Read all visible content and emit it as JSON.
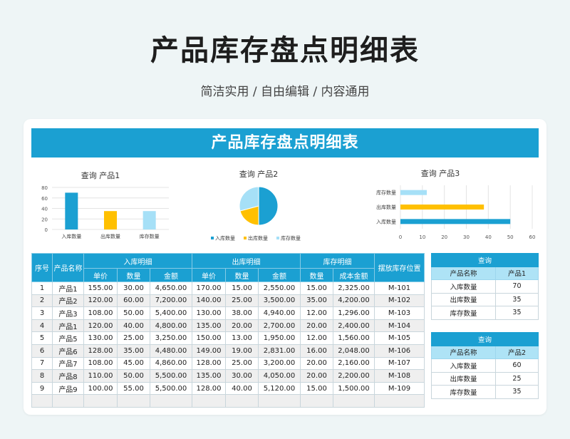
{
  "header": {
    "title": "产品库存盘点明细表",
    "subtitle": "简洁实用 / 自由编辑 / 内容通用"
  },
  "banner": {
    "title": "产品库存盘点明细表"
  },
  "colors": {
    "primary": "#1ba0d2",
    "yellow": "#ffc000",
    "light": "#a6e0f7"
  },
  "chart_data": [
    {
      "type": "bar",
      "title": "查询 产品1",
      "categories": [
        "入库数量",
        "出库数量",
        "库存数量"
      ],
      "values": [
        70,
        35,
        35
      ],
      "ylim": [
        0,
        80
      ],
      "yticks": [
        0,
        20,
        40,
        60,
        80
      ]
    },
    {
      "type": "pie",
      "title": "查询 产品2",
      "categories": [
        "入库数量",
        "出库数量",
        "库存数量"
      ],
      "values": [
        60,
        25,
        35
      ],
      "legend": "bottom"
    },
    {
      "type": "bar",
      "orientation": "horizontal",
      "title": "查询 产品3",
      "categories": [
        "入库数量",
        "出库数量",
        "库存数量"
      ],
      "values": [
        50,
        38,
        12
      ],
      "xlim": [
        0,
        60
      ],
      "xticks": [
        0,
        10,
        20,
        30,
        40,
        50,
        60
      ]
    }
  ],
  "inventory": {
    "headers": {
      "seq": "序号",
      "name": "产品名称",
      "in_group": "入库明细",
      "out_group": "出库明细",
      "stock_group": "库存明细",
      "location": "摆放库存位置",
      "price": "单价",
      "qty": "数量",
      "amount": "金额",
      "cost": "成本金额"
    },
    "rows": [
      [
        "1",
        "产品1",
        "155.00",
        "30.00",
        "4,650.00",
        "170.00",
        "15.00",
        "2,550.00",
        "15.00",
        "2,325.00",
        "M-101"
      ],
      [
        "2",
        "产品2",
        "120.00",
        "60.00",
        "7,200.00",
        "140.00",
        "25.00",
        "3,500.00",
        "35.00",
        "4,200.00",
        "M-102"
      ],
      [
        "3",
        "产品3",
        "108.00",
        "50.00",
        "5,400.00",
        "130.00",
        "38.00",
        "4,940.00",
        "12.00",
        "1,296.00",
        "M-103"
      ],
      [
        "4",
        "产品1",
        "120.00",
        "40.00",
        "4,800.00",
        "135.00",
        "20.00",
        "2,700.00",
        "20.00",
        "2,400.00",
        "M-104"
      ],
      [
        "5",
        "产品5",
        "130.00",
        "25.00",
        "3,250.00",
        "150.00",
        "13.00",
        "1,950.00",
        "12.00",
        "1,560.00",
        "M-105"
      ],
      [
        "6",
        "产品6",
        "128.00",
        "35.00",
        "4,480.00",
        "149.00",
        "19.00",
        "2,831.00",
        "16.00",
        "2,048.00",
        "M-106"
      ],
      [
        "7",
        "产品7",
        "108.00",
        "45.00",
        "4,860.00",
        "128.00",
        "25.00",
        "3,200.00",
        "20.00",
        "2,160.00",
        "M-107"
      ],
      [
        "8",
        "产品8",
        "110.00",
        "50.00",
        "5,500.00",
        "135.00",
        "30.00",
        "4,050.00",
        "20.00",
        "2,200.00",
        "M-108"
      ],
      [
        "9",
        "产品9",
        "100.00",
        "55.00",
        "5,500.00",
        "128.00",
        "40.00",
        "5,120.00",
        "15.00",
        "1,500.00",
        "M-109"
      ],
      [
        "",
        "",
        "",
        "",
        "",
        "",
        "",
        "",
        "",
        "",
        ""
      ]
    ]
  },
  "queries": [
    {
      "title": "查询",
      "label_header": "产品名称",
      "product": "产品1",
      "rows": [
        [
          "入库数量",
          "70"
        ],
        [
          "出库数量",
          "35"
        ],
        [
          "库存数量",
          "35"
        ]
      ]
    },
    {
      "title": "查询",
      "label_header": "产品名称",
      "product": "产品2",
      "rows": [
        [
          "入库数量",
          "60"
        ],
        [
          "出库数量",
          "25"
        ],
        [
          "库存数量",
          "35"
        ]
      ]
    }
  ]
}
